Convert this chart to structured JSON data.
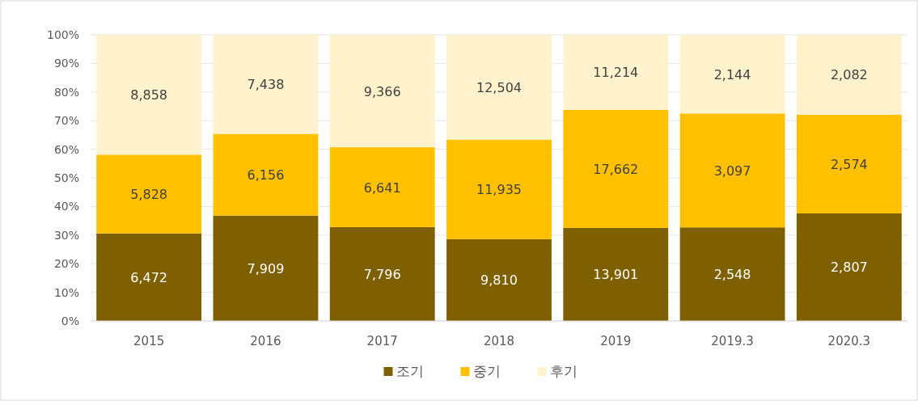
{
  "chart_data": {
    "type": "bar",
    "stacked": true,
    "categories": [
      "2015",
      "2016",
      "2017",
      "2018",
      "2019",
      "2019.3",
      "2020.3"
    ],
    "series": [
      {
        "name": "조기",
        "color": "#7f6000",
        "values": [
          30.6,
          36.8,
          32.8,
          28.6,
          32.5,
          32.7,
          37.6
        ]
      },
      {
        "name": "중기",
        "color": "#ffc000",
        "values": [
          27.5,
          28.6,
          27.9,
          34.8,
          41.3,
          39.8,
          34.5
        ]
      },
      {
        "name": "후기",
        "color": "#fff2cc",
        "values": [
          41.9,
          34.6,
          39.3,
          36.6,
          26.2,
          27.5,
          27.9
        ]
      }
    ],
    "annotations": [
      "6,472",
      "7,909",
      "7,796",
      "9,810",
      "13,901",
      "2,548",
      "2,807",
      "5,828",
      "6,156",
      "6,641",
      "11,935",
      "17,662",
      "3,097",
      "2,574",
      "8,858",
      "7,438",
      "9,366",
      "12,504",
      "11,214",
      "2,144",
      "2,082"
    ],
    "ylim": [
      0,
      100
    ],
    "yticks": [
      {
        "value": 0,
        "label": "0%"
      },
      {
        "value": 10,
        "label": "10%"
      },
      {
        "value": 20,
        "label": "20%"
      },
      {
        "value": 30,
        "label": "30%"
      },
      {
        "value": 40,
        "label": "40%"
      },
      {
        "value": 50,
        "label": "50%"
      },
      {
        "value": 60,
        "label": "60%"
      },
      {
        "value": 70,
        "label": "70%"
      },
      {
        "value": 80,
        "label": "80%"
      },
      {
        "value": 90,
        "label": "90%"
      },
      {
        "value": 100,
        "label": "100%"
      }
    ],
    "grid": "y",
    "legend": "bottom"
  }
}
